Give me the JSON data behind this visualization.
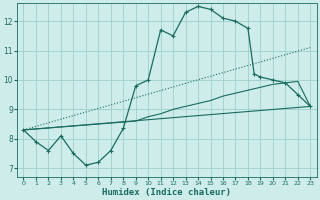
{
  "xlabel": "Humidex (Indice chaleur)",
  "bg_color": "#ceecea",
  "grid_color": "#9dcfcc",
  "line_color": "#1a6b60",
  "xlim": [
    -0.5,
    23.5
  ],
  "ylim": [
    6.7,
    12.6
  ],
  "xticks": [
    0,
    1,
    2,
    3,
    4,
    5,
    6,
    7,
    8,
    9,
    10,
    11,
    12,
    13,
    14,
    15,
    16,
    17,
    18,
    19,
    20,
    21,
    22,
    23
  ],
  "yticks": [
    7,
    8,
    9,
    10,
    11,
    12
  ],
  "line1_x": [
    0,
    1,
    2,
    3,
    4,
    5,
    6,
    7,
    8,
    9,
    10,
    11,
    12,
    13,
    14,
    15,
    16,
    17,
    18,
    18.5,
    19,
    20,
    21,
    22,
    23
  ],
  "line1_y": [
    8.3,
    7.9,
    7.6,
    8.1,
    7.5,
    7.1,
    7.2,
    7.6,
    8.35,
    9.8,
    10.0,
    11.7,
    11.5,
    12.3,
    12.5,
    12.4,
    12.1,
    12.0,
    11.75,
    10.2,
    10.1,
    10.0,
    9.9,
    9.5,
    9.1
  ],
  "line2_x": [
    0,
    23
  ],
  "line2_y": [
    8.3,
    9.1
  ],
  "line3_x": [
    0,
    23
  ],
  "line3_y": [
    8.3,
    11.1
  ],
  "line4_x": [
    0,
    9,
    10,
    11,
    12,
    13,
    14,
    15,
    16,
    17,
    18,
    19,
    20,
    21,
    22,
    23
  ],
  "line4_y": [
    8.3,
    8.6,
    8.75,
    8.85,
    9.0,
    9.1,
    9.2,
    9.3,
    9.45,
    9.55,
    9.65,
    9.75,
    9.85,
    9.9,
    9.95,
    9.1
  ]
}
